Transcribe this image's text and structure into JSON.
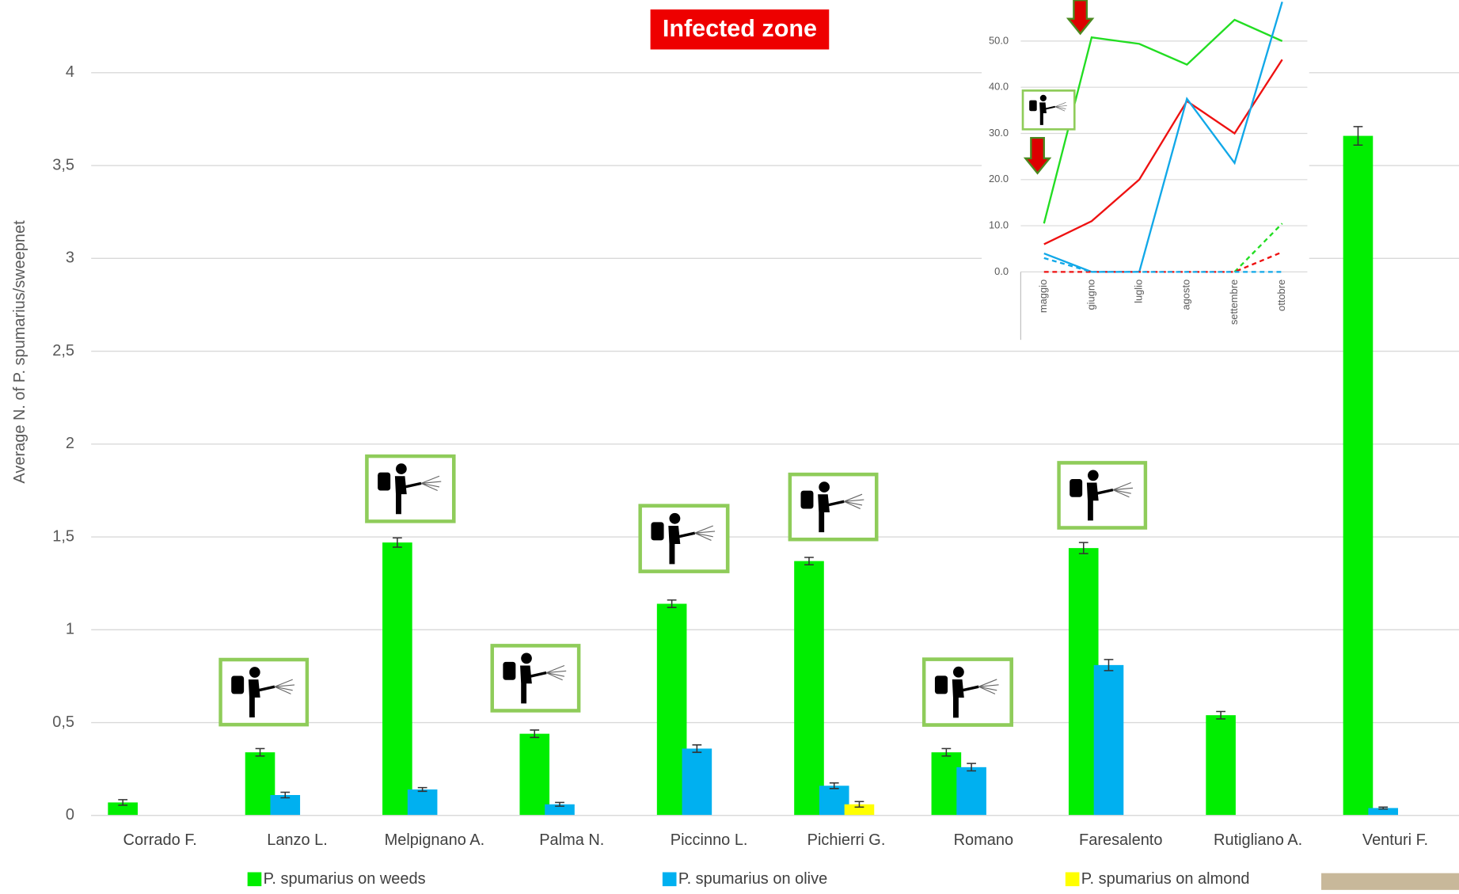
{
  "chart_data": [
    {
      "type": "bar",
      "title": "Infected zone",
      "y_label": "Average N. of  P. spumarius/sweepnet",
      "categories": [
        "Corrado F.",
        "Lanzo L.",
        "Melpignano A.",
        "Palma N.",
        "Piccinno L.",
        "Pichierri G.",
        "Romano",
        "Faresalento",
        "Rutigliano A.",
        "Venturi F."
      ],
      "series": [
        {
          "name": "P. spumarius on weeds",
          "color": "#00ee00",
          "values": [
            0.07,
            0.34,
            1.47,
            0.44,
            1.14,
            1.37,
            0.34,
            1.44,
            0.54,
            3.66
          ],
          "errors": [
            0.015,
            0.02,
            0.025,
            0.02,
            0.02,
            0.02,
            0.02,
            0.03,
            0.02,
            0.05
          ]
        },
        {
          "name": "P. spumarius on olive",
          "color": "#00b0f0",
          "values": [
            0,
            0.11,
            0.14,
            0.06,
            0.36,
            0.16,
            0.26,
            0.81,
            0,
            0.04
          ],
          "errors": [
            0,
            0.015,
            0.01,
            0.01,
            0.02,
            0.015,
            0.02,
            0.03,
            0,
            0.005
          ]
        },
        {
          "name": "P. spumarius on almond",
          "color": "#ffff00",
          "values": [
            0,
            0,
            0,
            0,
            0,
            0.06,
            0,
            0,
            0,
            0
          ],
          "errors": [
            0,
            0,
            0,
            0,
            0,
            0.015,
            0,
            0,
            0,
            0
          ]
        }
      ],
      "ylim": [
        0,
        4.35
      ],
      "yticks": [
        0,
        {
          "value": 0.5,
          "label": "0,5"
        },
        1,
        {
          "value": 1.5,
          "label": "1,5"
        },
        2,
        {
          "value": 2.5,
          "label": "2,5"
        },
        3,
        {
          "value": 3.5,
          "label": "3,5"
        },
        4
      ],
      "grid": true,
      "legend": "bottom"
    },
    {
      "type": "line",
      "categories": [
        "maggio",
        "giugno",
        "luglio",
        "agosto",
        "settembre",
        "ottobre"
      ],
      "series": [
        {
          "color": "#22dd22",
          "dash": false,
          "values": [
            10.5,
            50.8,
            49.4,
            44.9,
            54.6,
            50.0
          ]
        },
        {
          "color": "#ee1111",
          "dash": false,
          "values": [
            6,
            11,
            20,
            37,
            30,
            46
          ]
        },
        {
          "color": "#11a8e8",
          "dash": false,
          "values": [
            4,
            0,
            0,
            37.5,
            23.6,
            58.5
          ]
        },
        {
          "color": "#22dd22",
          "dash": true,
          "values": [
            null,
            null,
            null,
            null,
            0,
            10.5
          ]
        },
        {
          "color": "#ee1111",
          "dash": true,
          "values": [
            0,
            0,
            0,
            0,
            0,
            4.3
          ]
        },
        {
          "color": "#11a8e8",
          "dash": true,
          "values": [
            3,
            0,
            0,
            0,
            0,
            0
          ]
        }
      ],
      "ylim": [
        0,
        58.9
      ],
      "yticks": [
        {
          "value": 0,
          "label": "0.0"
        },
        {
          "value": 10,
          "label": "10.0"
        },
        {
          "value": 20,
          "label": "20.0"
        },
        {
          "value": 30,
          "label": "30.0"
        },
        {
          "value": 40,
          "label": "40.0"
        },
        {
          "value": 50,
          "label": "50.0"
        }
      ],
      "grid": true
    }
  ]
}
